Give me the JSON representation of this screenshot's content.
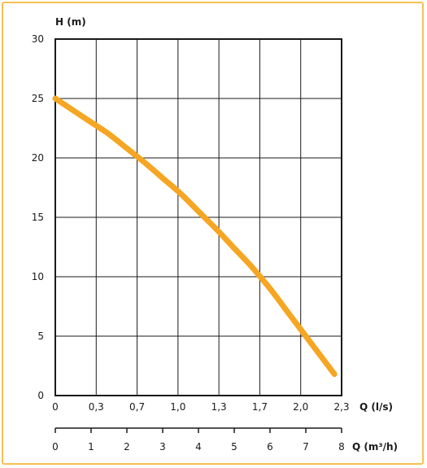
{
  "chart_data": {
    "type": "line",
    "ylabel": "H (m)",
    "xlabel": "Q (l/s)",
    "x2label": "Q (m³/h)",
    "y_ticks": [
      "0",
      "5",
      "10",
      "15",
      "20",
      "25",
      "30"
    ],
    "x_ticks": [
      "0",
      "0,3",
      "0,7",
      "1,0",
      "1,3",
      "1,7",
      "2,0",
      "2,3"
    ],
    "x2_ticks": [
      "0",
      "1",
      "2",
      "3",
      "4",
      "5",
      "6",
      "7",
      "8"
    ],
    "ylim": [
      0,
      30
    ],
    "x2lim": [
      0,
      8
    ],
    "grid": true,
    "series": [
      {
        "color": "#f6a623",
        "x": [
          0,
          0.5,
          1.0,
          1.5,
          2.0,
          2.5,
          3.0,
          3.5,
          4.0,
          4.5,
          5.0,
          5.5,
          6.0,
          6.5,
          7.0,
          7.5,
          7.8
        ],
        "y": [
          25.0,
          24.0,
          23.0,
          22.0,
          20.8,
          19.6,
          18.3,
          17.0,
          15.5,
          14.0,
          12.4,
          10.8,
          9.0,
          7.0,
          5.0,
          3.0,
          1.8
        ]
      }
    ]
  }
}
